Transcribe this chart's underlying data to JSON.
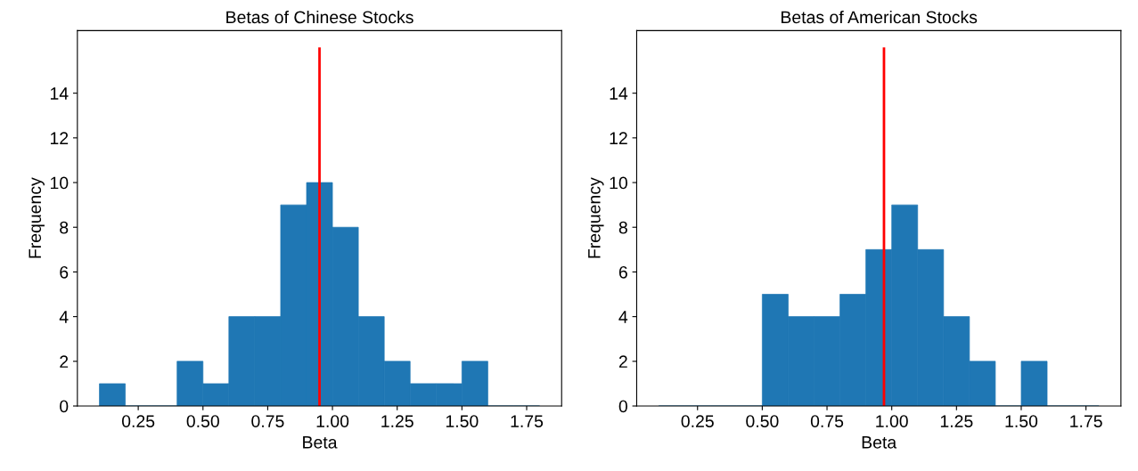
{
  "chart_data": [
    {
      "type": "histogram",
      "title": "Betas of Chinese Stocks",
      "xlabel": "Beta",
      "ylabel": "Frequency",
      "color": "#1f77b4",
      "bins": [
        0.1,
        0.2,
        0.3,
        0.4,
        0.5,
        0.6,
        0.7,
        0.8,
        0.9,
        1.0,
        1.1,
        1.2,
        1.3,
        1.4,
        1.5,
        1.6,
        1.7,
        1.8
      ],
      "values": [
        1,
        0,
        0,
        2,
        1,
        4,
        4,
        9,
        10,
        8,
        4,
        2,
        1,
        1,
        2,
        0,
        0
      ],
      "xlim": [
        0.015,
        1.885
      ],
      "xticks": [
        {
          "value": 0.25,
          "label": "0.25"
        },
        {
          "value": 0.5,
          "label": "0.50"
        },
        {
          "value": 0.75,
          "label": "0.75"
        },
        {
          "value": 1.0,
          "label": "1.00"
        },
        {
          "value": 1.25,
          "label": "1.25"
        },
        {
          "value": 1.5,
          "label": "1.50"
        },
        {
          "value": 1.75,
          "label": "1.75"
        }
      ],
      "ylim": [
        0,
        16.8
      ],
      "yticks": [
        0,
        2,
        4,
        6,
        8,
        10,
        12,
        14
      ],
      "ref_lines": [
        {
          "axis": "x",
          "value": 0.95,
          "color": "#ff0000"
        }
      ],
      "grid": false
    },
    {
      "type": "histogram",
      "title": "Betas of American Stocks",
      "xlabel": "Beta",
      "ylabel": "Frequency",
      "color": "#1f77b4",
      "bins": [
        0.1,
        0.2,
        0.3,
        0.4,
        0.5,
        0.6,
        0.7,
        0.8,
        0.9,
        1.0,
        1.1,
        1.2,
        1.3,
        1.4,
        1.5,
        1.6,
        1.7,
        1.8
      ],
      "values": [
        0,
        0,
        0,
        0,
        5,
        4,
        4,
        5,
        7,
        9,
        7,
        4,
        2,
        0,
        2,
        0,
        0
      ],
      "xlim": [
        0.015,
        1.885
      ],
      "xticks": [
        {
          "value": 0.25,
          "label": "0.25"
        },
        {
          "value": 0.5,
          "label": "0.50"
        },
        {
          "value": 0.75,
          "label": "0.75"
        },
        {
          "value": 1.0,
          "label": "1.00"
        },
        {
          "value": 1.25,
          "label": "1.25"
        },
        {
          "value": 1.5,
          "label": "1.50"
        },
        {
          "value": 1.75,
          "label": "1.75"
        }
      ],
      "ylim": [
        0,
        16.8
      ],
      "yticks": [
        0,
        2,
        4,
        6,
        8,
        10,
        12,
        14
      ],
      "ref_lines": [
        {
          "axis": "x",
          "value": 0.97,
          "color": "#ff0000"
        }
      ],
      "grid": false
    }
  ]
}
